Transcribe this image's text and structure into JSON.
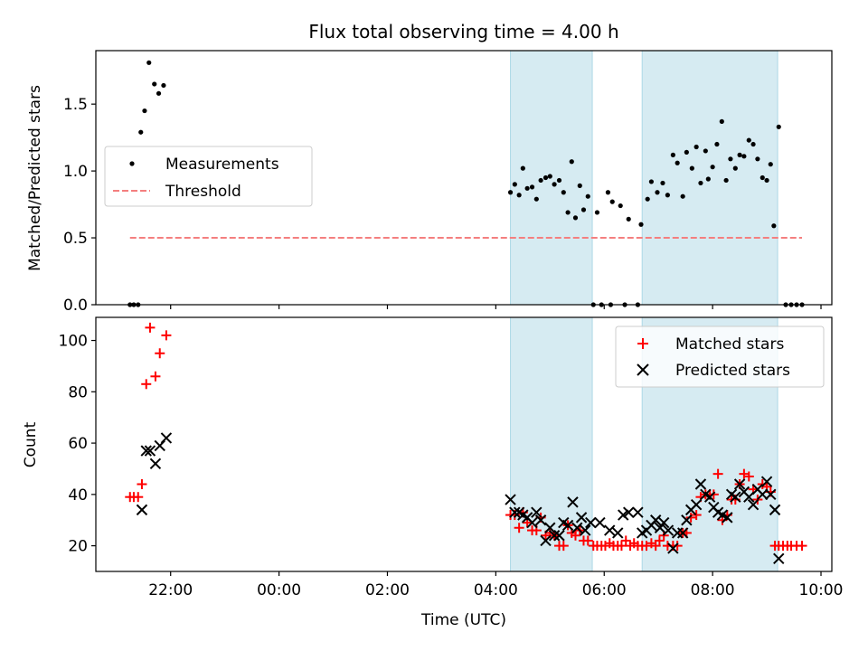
{
  "title": "Flux total observing time = 4.00 h",
  "colors": {
    "measurement": "#000000",
    "threshold": "#f47f7f",
    "matched": "#ff0000",
    "predicted": "#000000",
    "span": "#add8e6"
  },
  "chart_data": [
    {
      "type": "scatter",
      "ylabel": "Matched/Predicted stars",
      "ylim": [
        0,
        1.9
      ],
      "yticks": [
        0.0,
        0.5,
        1.0,
        1.5
      ],
      "ytick_labels": [
        "0.0",
        "0.5",
        "1.0",
        "1.5"
      ],
      "xlim_hours": [
        20.62,
        34.2
      ],
      "shaded_spans_hours": [
        [
          28.27,
          29.78
        ],
        [
          30.7,
          33.2
        ]
      ],
      "legend": {
        "position": "center-left",
        "measurements_label": "Measurements",
        "threshold_label": "Threshold"
      },
      "threshold": {
        "value": 0.5,
        "from_hours": 21.25,
        "to_hours": 33.65
      },
      "measurements": [
        [
          21.25,
          0
        ],
        [
          21.32,
          0
        ],
        [
          21.4,
          0
        ],
        [
          21.45,
          1.29
        ],
        [
          21.52,
          1.45
        ],
        [
          21.6,
          1.81
        ],
        [
          21.7,
          1.65
        ],
        [
          21.78,
          1.58
        ],
        [
          21.87,
          1.64
        ],
        [
          28.27,
          0.84
        ],
        [
          28.35,
          0.9
        ],
        [
          28.43,
          0.82
        ],
        [
          28.5,
          1.02
        ],
        [
          28.58,
          0.87
        ],
        [
          28.67,
          0.88
        ],
        [
          28.75,
          0.79
        ],
        [
          28.83,
          0.93
        ],
        [
          28.92,
          0.95
        ],
        [
          29.0,
          0.96
        ],
        [
          29.08,
          0.9
        ],
        [
          29.17,
          0.93
        ],
        [
          29.25,
          0.84
        ],
        [
          29.33,
          0.69
        ],
        [
          29.4,
          1.07
        ],
        [
          29.47,
          0.65
        ],
        [
          29.55,
          0.89
        ],
        [
          29.62,
          0.71
        ],
        [
          29.7,
          0.81
        ],
        [
          29.8,
          0
        ],
        [
          29.95,
          0
        ],
        [
          30.12,
          0
        ],
        [
          30.38,
          0
        ],
        [
          30.62,
          0
        ],
        [
          29.87,
          0.69
        ],
        [
          30.07,
          0.84
        ],
        [
          30.15,
          0.77
        ],
        [
          30.3,
          0.74
        ],
        [
          30.45,
          0.64
        ],
        [
          30.68,
          0.6
        ],
        [
          30.8,
          0.79
        ],
        [
          30.87,
          0.92
        ],
        [
          30.98,
          0.84
        ],
        [
          31.08,
          0.91
        ],
        [
          31.17,
          0.82
        ],
        [
          31.27,
          1.12
        ],
        [
          31.35,
          1.06
        ],
        [
          31.45,
          0.81
        ],
        [
          31.52,
          1.14
        ],
        [
          31.62,
          1.02
        ],
        [
          31.7,
          1.18
        ],
        [
          31.78,
          0.91
        ],
        [
          31.87,
          1.15
        ],
        [
          31.92,
          0.94
        ],
        [
          32.0,
          1.03
        ],
        [
          32.08,
          1.2
        ],
        [
          32.17,
          1.37
        ],
        [
          32.25,
          0.93
        ],
        [
          32.33,
          1.09
        ],
        [
          32.42,
          1.02
        ],
        [
          32.5,
          1.12
        ],
        [
          32.58,
          1.11
        ],
        [
          32.67,
          1.23
        ],
        [
          32.75,
          1.2
        ],
        [
          32.83,
          1.09
        ],
        [
          32.92,
          0.95
        ],
        [
          33.0,
          0.93
        ],
        [
          33.07,
          1.05
        ],
        [
          33.13,
          0.59
        ],
        [
          33.22,
          1.33
        ],
        [
          33.35,
          0
        ],
        [
          33.45,
          0
        ],
        [
          33.55,
          0
        ],
        [
          33.65,
          0
        ]
      ]
    },
    {
      "type": "scatter",
      "xlabel": "Time (UTC)",
      "ylabel": "Count",
      "ylim": [
        10,
        109
      ],
      "yticks": [
        20,
        40,
        60,
        80,
        100
      ],
      "ytick_labels": [
        "20",
        "40",
        "60",
        "80",
        "100"
      ],
      "xticks_hours": [
        22,
        24,
        26,
        28,
        30,
        32,
        34
      ],
      "xtick_labels": [
        "22:00",
        "00:00",
        "02:00",
        "04:00",
        "06:00",
        "08:00",
        "10:00"
      ],
      "xlim_hours": [
        20.62,
        34.2
      ],
      "shaded_spans_hours": [
        [
          28.27,
          29.78
        ],
        [
          30.7,
          33.2
        ]
      ],
      "legend": {
        "position": "top-right"
      },
      "series": [
        {
          "name": "Matched stars",
          "marker": "+",
          "points": [
            [
              21.25,
              39
            ],
            [
              21.32,
              39
            ],
            [
              21.4,
              39
            ],
            [
              21.47,
              44
            ],
            [
              21.55,
              83
            ],
            [
              21.62,
              105
            ],
            [
              21.72,
              86
            ],
            [
              21.8,
              95
            ],
            [
              21.92,
              102
            ],
            [
              28.27,
              32
            ],
            [
              28.35,
              32
            ],
            [
              28.43,
              27
            ],
            [
              28.5,
              33
            ],
            [
              28.58,
              29
            ],
            [
              28.67,
              26
            ],
            [
              28.75,
              26
            ],
            [
              28.83,
              31
            ],
            [
              28.92,
              24
            ],
            [
              29.0,
              25
            ],
            [
              29.08,
              24
            ],
            [
              29.17,
              20
            ],
            [
              29.25,
              20
            ],
            [
              29.33,
              28
            ],
            [
              29.4,
              25
            ],
            [
              29.47,
              24
            ],
            [
              29.55,
              26
            ],
            [
              29.62,
              22
            ],
            [
              29.7,
              22
            ],
            [
              29.8,
              20
            ],
            [
              29.87,
              20
            ],
            [
              29.95,
              20
            ],
            [
              30.02,
              20
            ],
            [
              30.1,
              21
            ],
            [
              30.17,
              20
            ],
            [
              30.25,
              20
            ],
            [
              30.32,
              20
            ],
            [
              30.4,
              22
            ],
            [
              30.48,
              20
            ],
            [
              30.55,
              21
            ],
            [
              30.62,
              20
            ],
            [
              30.7,
              20
            ],
            [
              30.78,
              20
            ],
            [
              30.87,
              21
            ],
            [
              30.95,
              20
            ],
            [
              31.02,
              22
            ],
            [
              31.1,
              24
            ],
            [
              31.17,
              20
            ],
            [
              31.27,
              20
            ],
            [
              31.35,
              20
            ],
            [
              31.45,
              25
            ],
            [
              31.52,
              25
            ],
            [
              31.6,
              31
            ],
            [
              31.7,
              32
            ],
            [
              31.78,
              39
            ],
            [
              31.87,
              40
            ],
            [
              31.95,
              40
            ],
            [
              32.02,
              40
            ],
            [
              32.1,
              48
            ],
            [
              32.18,
              30
            ],
            [
              32.27,
              32
            ],
            [
              32.35,
              38
            ],
            [
              32.42,
              38
            ],
            [
              32.5,
              44
            ],
            [
              32.58,
              48
            ],
            [
              32.67,
              47
            ],
            [
              32.75,
              42
            ],
            [
              32.83,
              38
            ],
            [
              32.92,
              44
            ],
            [
              33.0,
              43
            ],
            [
              33.07,
              41
            ],
            [
              33.15,
              20
            ],
            [
              33.22,
              20
            ],
            [
              33.3,
              20
            ],
            [
              33.38,
              20
            ],
            [
              33.45,
              20
            ],
            [
              33.55,
              20
            ],
            [
              33.65,
              20
            ]
          ]
        },
        {
          "name": "Predicted stars",
          "marker": "x",
          "points": [
            [
              21.47,
              34
            ],
            [
              21.55,
              57
            ],
            [
              21.62,
              57
            ],
            [
              21.72,
              52
            ],
            [
              21.8,
              59
            ],
            [
              21.92,
              62
            ],
            [
              28.27,
              38
            ],
            [
              28.35,
              33
            ],
            [
              28.43,
              33
            ],
            [
              28.5,
              32
            ],
            [
              28.58,
              31
            ],
            [
              28.67,
              29
            ],
            [
              28.75,
              33
            ],
            [
              28.83,
              30
            ],
            [
              28.92,
              22
            ],
            [
              29.0,
              27
            ],
            [
              29.08,
              24
            ],
            [
              29.17,
              24
            ],
            [
              29.25,
              29
            ],
            [
              29.33,
              28
            ],
            [
              29.42,
              37
            ],
            [
              29.5,
              27
            ],
            [
              29.58,
              31
            ],
            [
              29.65,
              26
            ],
            [
              29.75,
              29
            ],
            [
              29.92,
              29
            ],
            [
              30.1,
              26
            ],
            [
              30.25,
              25
            ],
            [
              30.35,
              32
            ],
            [
              30.45,
              33
            ],
            [
              30.62,
              33
            ],
            [
              30.7,
              25
            ],
            [
              30.78,
              26
            ],
            [
              30.87,
              28
            ],
            [
              30.95,
              30
            ],
            [
              31.03,
              27
            ],
            [
              31.1,
              29
            ],
            [
              31.18,
              26
            ],
            [
              31.27,
              19
            ],
            [
              31.35,
              25
            ],
            [
              31.45,
              25
            ],
            [
              31.52,
              30
            ],
            [
              31.6,
              34
            ],
            [
              31.7,
              36
            ],
            [
              31.78,
              44
            ],
            [
              31.87,
              40
            ],
            [
              31.95,
              39
            ],
            [
              32.02,
              35
            ],
            [
              32.1,
              33
            ],
            [
              32.18,
              32
            ],
            [
              32.27,
              31
            ],
            [
              32.35,
              40
            ],
            [
              32.42,
              39
            ],
            [
              32.5,
              44
            ],
            [
              32.58,
              41
            ],
            [
              32.67,
              39
            ],
            [
              32.75,
              36
            ],
            [
              32.83,
              42
            ],
            [
              32.92,
              40
            ],
            [
              33.0,
              45
            ],
            [
              33.07,
              40
            ],
            [
              33.15,
              34
            ],
            [
              33.22,
              15
            ]
          ]
        }
      ]
    }
  ]
}
